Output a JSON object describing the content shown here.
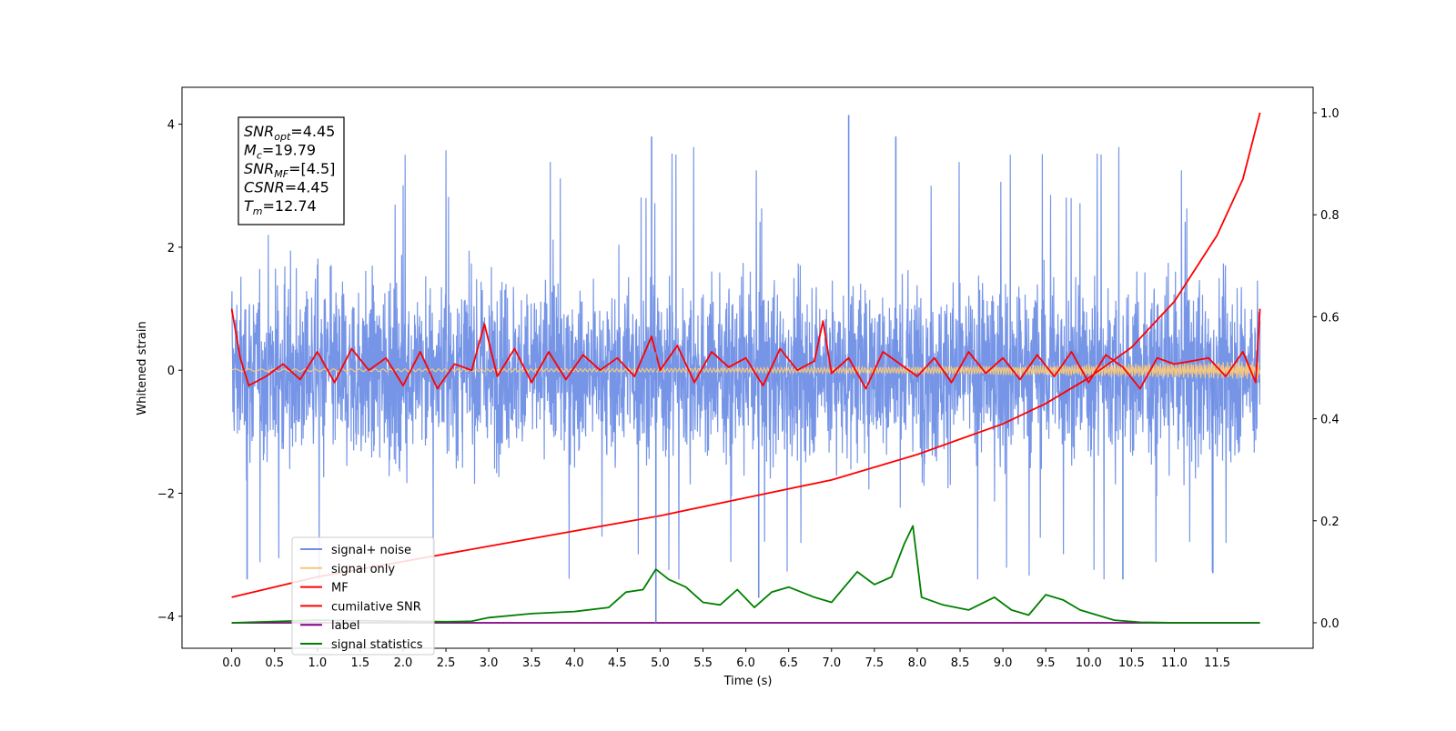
{
  "chart_data": {
    "type": "line",
    "xlabel": "Time (s)",
    "ylabel": "Whitened strain",
    "xlim": [
      -0.58,
      12.62
    ],
    "ylim": [
      -4.52,
      4.6
    ],
    "ylim_right": [
      -0.05,
      1.05
    ],
    "x_ticks": [
      "0.0",
      "0.5",
      "1.0",
      "1.5",
      "2.0",
      "2.5",
      "3.0",
      "3.5",
      "4.0",
      "4.5",
      "5.0",
      "5.5",
      "6.0",
      "6.5",
      "7.0",
      "7.5",
      "8.0",
      "8.5",
      "9.0",
      "9.5",
      "10.0",
      "10.5",
      "11.0",
      "11.5"
    ],
    "y_ticks_left": [
      "−4",
      "−2",
      "0",
      "2",
      "4"
    ],
    "y_ticks_right": [
      "0.0",
      "0.2",
      "0.4",
      "0.6",
      "0.8",
      "1.0"
    ],
    "annotation": [
      {
        "base": "SNR",
        "sub": "opt",
        "value": "=4.45"
      },
      {
        "base": "M",
        "sub": "c",
        "value": "=19.79"
      },
      {
        "base": "SNR",
        "sub": "MF",
        "value": "=[4.5]"
      },
      {
        "base": "CSNR",
        "sub": "",
        "value": "=4.45"
      },
      {
        "base": "T",
        "sub": "m",
        "value": "=12.74"
      }
    ],
    "legend_position": "lower-left",
    "series": [
      {
        "name": "signal+ noise",
        "axis": "left",
        "color": "#6f8fe6",
        "range": [
          -3.4,
          4.15
        ],
        "description_of_values": "noise around 0, mostly within ±2.5, spikes to 4.15 near 7.2 s"
      },
      {
        "name": "signal only",
        "axis": "left",
        "color": "#f5c77e",
        "amplitude_start": 0.02,
        "amplitude_end": 0.15
      },
      {
        "name": "MF",
        "axis": "left",
        "color": "#ff0000",
        "x": [
          0.0,
          0.1,
          0.2,
          0.4,
          0.6,
          0.8,
          1.0,
          1.2,
          1.4,
          1.6,
          1.8,
          2.0,
          2.2,
          2.4,
          2.6,
          2.8,
          2.95,
          3.1,
          3.3,
          3.5,
          3.7,
          3.9,
          4.1,
          4.3,
          4.5,
          4.7,
          4.9,
          5.0,
          5.2,
          5.4,
          5.6,
          5.8,
          6.0,
          6.2,
          6.4,
          6.6,
          6.8,
          6.9,
          7.0,
          7.2,
          7.4,
          7.6,
          7.8,
          8.0,
          8.2,
          8.4,
          8.6,
          8.8,
          9.0,
          9.2,
          9.4,
          9.6,
          9.8,
          10.0,
          10.2,
          10.4,
          10.6,
          10.8,
          11.0,
          11.2,
          11.4,
          11.6,
          11.8,
          11.95,
          12.0
        ],
        "y": [
          1.0,
          0.2,
          -0.25,
          -0.1,
          0.1,
          -0.15,
          0.3,
          -0.2,
          0.35,
          0.0,
          0.2,
          -0.25,
          0.3,
          -0.3,
          0.1,
          0.0,
          0.75,
          -0.1,
          0.35,
          -0.2,
          0.3,
          -0.15,
          0.25,
          0.0,
          0.2,
          -0.1,
          0.55,
          0.0,
          0.4,
          -0.2,
          0.3,
          0.05,
          0.2,
          -0.25,
          0.35,
          0.0,
          0.15,
          0.8,
          -0.05,
          0.2,
          -0.3,
          0.3,
          0.1,
          -0.1,
          0.2,
          -0.2,
          0.3,
          -0.05,
          0.2,
          -0.15,
          0.25,
          -0.1,
          0.3,
          -0.2,
          0.25,
          0.05,
          -0.3,
          0.2,
          0.1,
          0.15,
          0.2,
          -0.1,
          0.3,
          -0.2,
          1.0
        ]
      },
      {
        "name": "cumilative SNR",
        "axis": "right",
        "color": "#ff0000",
        "x": [
          0.0,
          1.0,
          2.0,
          3.0,
          4.0,
          5.0,
          6.0,
          7.0,
          8.0,
          8.5,
          9.0,
          9.5,
          10.0,
          10.5,
          11.0,
          11.5,
          11.8,
          12.0
        ],
        "y": [
          0.05,
          0.09,
          0.12,
          0.15,
          0.18,
          0.21,
          0.245,
          0.28,
          0.33,
          0.36,
          0.39,
          0.43,
          0.48,
          0.54,
          0.63,
          0.76,
          0.87,
          1.0
        ]
      },
      {
        "name": "label",
        "axis": "right",
        "color": "#800080",
        "x": [
          0.0,
          12.0
        ],
        "y": [
          0.0,
          0.0
        ],
        "spikes_at": [
          4.95
        ]
      },
      {
        "name": "signal statistics",
        "axis": "right",
        "color": "#008000",
        "x": [
          0.0,
          1.0,
          2.0,
          2.5,
          2.8,
          3.0,
          3.5,
          4.0,
          4.4,
          4.6,
          4.8,
          4.95,
          5.1,
          5.3,
          5.5,
          5.7,
          5.9,
          6.1,
          6.3,
          6.5,
          6.8,
          7.0,
          7.2,
          7.3,
          7.5,
          7.7,
          7.85,
          7.95,
          8.05,
          8.3,
          8.6,
          8.9,
          9.1,
          9.3,
          9.5,
          9.7,
          9.9,
          10.1,
          10.3,
          10.6,
          11.0,
          12.0
        ],
        "y": [
          0.0,
          0.005,
          0.003,
          0.002,
          0.003,
          0.01,
          0.018,
          0.022,
          0.03,
          0.06,
          0.065,
          0.105,
          0.085,
          0.07,
          0.04,
          0.035,
          0.065,
          0.03,
          0.06,
          0.07,
          0.05,
          0.04,
          0.08,
          0.1,
          0.075,
          0.09,
          0.155,
          0.19,
          0.05,
          0.035,
          0.025,
          0.05,
          0.025,
          0.015,
          0.055,
          0.045,
          0.025,
          0.015,
          0.005,
          0.001,
          0.0,
          0.0
        ]
      }
    ]
  }
}
